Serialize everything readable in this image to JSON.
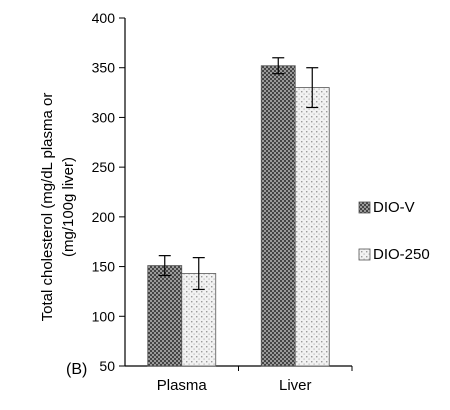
{
  "panel_label": "(B)",
  "chart_data": {
    "type": "bar",
    "ylabel_lines": [
      "Total cholesterol (mg/dL plasma or",
      "(mg/100g liver)"
    ],
    "ylim": [
      50,
      400
    ],
    "yticks": [
      50,
      100,
      150,
      200,
      250,
      300,
      350,
      400
    ],
    "ytick_labels": [
      "50",
      "100",
      "150",
      "200",
      "250",
      "300",
      "350",
      "400"
    ],
    "categories": [
      "Plasma",
      "Liver"
    ],
    "series": [
      {
        "name": "DIO-V",
        "values": [
          151,
          352
        ],
        "errors": [
          10,
          8
        ]
      },
      {
        "name": "DIO-250",
        "values": [
          143,
          330
        ],
        "errors": [
          16,
          20
        ]
      }
    ],
    "legend_position": "right",
    "grid": false
  }
}
